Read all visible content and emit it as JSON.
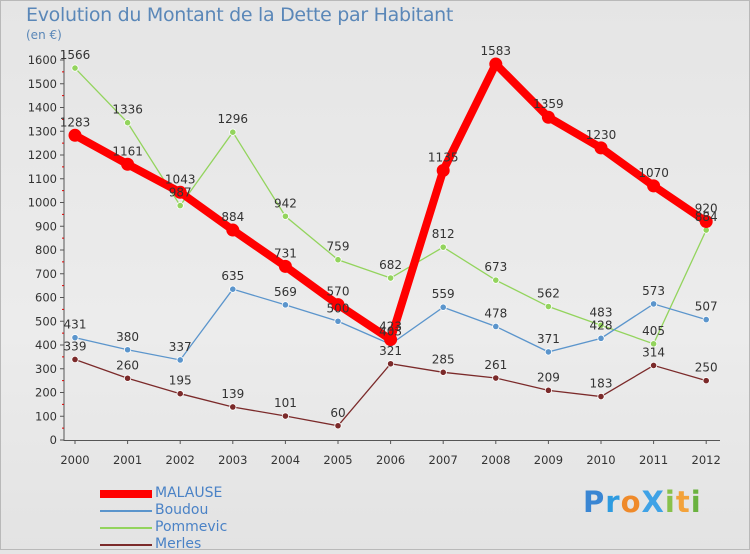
{
  "title": "Evolution du Montant de la Dette par Habitant",
  "unit": "(en €)",
  "logo": "ProXiti",
  "chart_data": {
    "type": "line",
    "x": [
      "2000",
      "2001",
      "2002",
      "2003",
      "2004",
      "2005",
      "2006",
      "2007",
      "2008",
      "2009",
      "2010",
      "2011",
      "2012"
    ],
    "ylim": [
      0,
      1600
    ],
    "yticks": [
      0,
      100,
      200,
      300,
      400,
      500,
      600,
      700,
      800,
      900,
      1000,
      1100,
      1200,
      1300,
      1400,
      1500,
      1600
    ],
    "grid": false,
    "legend_position": "bottom-left",
    "series": [
      {
        "name": "MALAUSE",
        "color": "#ff0000",
        "values": [
          1283,
          1161,
          1043,
          884,
          731,
          570,
          423,
          1135,
          1583,
          1359,
          1230,
          1070,
          920
        ]
      },
      {
        "name": "Boudou",
        "color": "#5b95cc",
        "values": [
          431,
          380,
          337,
          635,
          569,
          500,
          403,
          559,
          478,
          371,
          428,
          573,
          507
        ]
      },
      {
        "name": "Pommevic",
        "color": "#93d45d",
        "values": [
          1566,
          1336,
          987,
          1296,
          942,
          759,
          682,
          812,
          673,
          562,
          483,
          405,
          884
        ]
      },
      {
        "name": "Merles",
        "color": "#7b2a2a",
        "values": [
          339,
          260,
          195,
          139,
          101,
          60,
          321,
          285,
          261,
          209,
          183,
          314,
          250
        ]
      }
    ]
  }
}
